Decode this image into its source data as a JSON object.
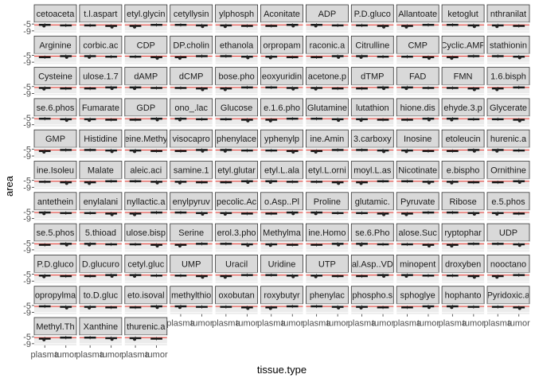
{
  "chart_data": {
    "type": "box",
    "facet_by": "metabolite",
    "xlabel": "tissue.type",
    "ylabel": "area",
    "x_categories": [
      "plasma",
      "tumor"
    ],
    "x_tick_labels": [
      "plasma",
      "tumor"
    ],
    "y_tick_labels": [
      "-5",
      "-9"
    ],
    "ylim": [
      -10,
      -4
    ],
    "reference_line": {
      "y": -5.5,
      "color": "#e6332a"
    },
    "facet_labels": [
      "cetoaceta",
      "t.l.aspart",
      "etyl.glycin",
      "cetyllysin",
      "ylphosph",
      "Aconitate",
      "ADP",
      "P.D.gluco",
      "Allantoate",
      "ketoglut",
      "nthranilat",
      "Arginine",
      "corbic.ac",
      "CDP",
      "DP.cholin",
      "ethanola",
      "orpropam",
      "raconic.a",
      "Citrulline",
      "CMP",
      "Cyclic.AMP",
      "stathionin",
      "Cysteine",
      "ulose.1.7",
      "dAMP",
      "dCMP",
      "bose.pho",
      "eoxyuridin",
      "acetone.p",
      "dTMP",
      "FAD",
      "FMN",
      "1.6.bisph",
      "se.6.phos",
      "Fumarate",
      "GDP",
      "ono_.lac",
      "Glucose",
      "e.1.6.pho",
      "Glutamine",
      "lutathion",
      "hione.dis",
      "ehyde.3.p",
      "Glycerate",
      "GMP",
      "Histidine",
      "eine.Methy",
      "visocapro",
      "phenylace",
      "yphenylp",
      "ine.Amin",
      "3.carboxy",
      "Inosine",
      "etoleucin",
      "hurenic.a",
      "ine.Isoleu",
      "Malate",
      "aleic.aci",
      "samine.1",
      "etyl.glutar",
      "etyl.L.ala",
      "etyl.L.orni",
      "moyl.L.as",
      "Nicotinate",
      "e.bispho",
      "Ornithine",
      "antethein",
      "enylalani",
      "nyllactic.a",
      "enylpyruv",
      "pecolic.Ac",
      "o.Asp..Pl",
      "Proline",
      "glutamic.",
      "Pyruvate",
      "Ribose",
      "e.5.phos",
      "se.5.phos",
      "5.thioad",
      "ulose.bisp",
      "Serine",
      "erol.3.pho",
      "Methylma",
      "ine.Homo",
      "se.6.Pho",
      "alose.Suc",
      "ryptophar",
      "UDP",
      "P.D.gluco",
      "D.glucuro",
      "cetyl.gluc",
      "UMP",
      "Uracil",
      "Uridine",
      "UTP",
      "al.Asp..VD",
      "minopent",
      "droxyben",
      "nooctano",
      "opropylma",
      "to.D.gluc",
      "eto.isoval",
      "methylthio",
      "oxobutan",
      "roxybutyr",
      "phenylac",
      "phospho.s",
      "sphoglye",
      "hophanto",
      "Pyridoxic.a",
      "Methyl.Th",
      "Xanthine",
      "thurenic.a"
    ]
  }
}
